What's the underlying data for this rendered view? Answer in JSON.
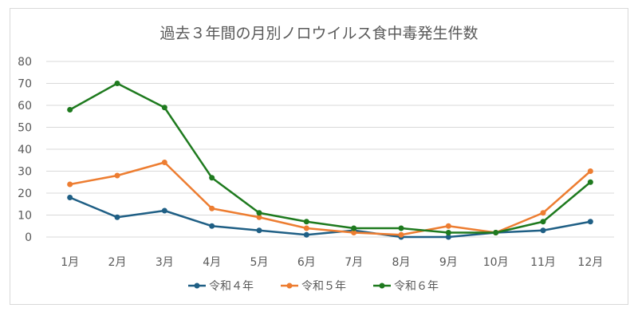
{
  "chart_data": {
    "type": "line",
    "title": "過去３年間の月別ノロウイルス食中毒発生件数",
    "categories": [
      "1月",
      "2月",
      "3月",
      "4月",
      "5月",
      "6月",
      "7月",
      "8月",
      "9月",
      "10月",
      "11月",
      "12月"
    ],
    "ylim": [
      0,
      80
    ],
    "yticks": [
      0,
      10,
      20,
      30,
      40,
      50,
      60,
      70,
      80
    ],
    "grid": true,
    "legend": "bottom",
    "series": [
      {
        "name": "令和４年",
        "color": "#1f5f85",
        "values": [
          18,
          9,
          12,
          5,
          3,
          1,
          3,
          0,
          0,
          2,
          3,
          7
        ]
      },
      {
        "name": "令和５年",
        "color": "#ed7d31",
        "values": [
          24,
          28,
          34,
          13,
          9,
          4,
          2,
          1,
          5,
          2,
          11,
          30
        ]
      },
      {
        "name": "令和６年",
        "color": "#1e7a1e",
        "values": [
          58,
          70,
          59,
          27,
          11,
          7,
          4,
          4,
          2,
          2,
          7,
          25
        ]
      }
    ]
  }
}
